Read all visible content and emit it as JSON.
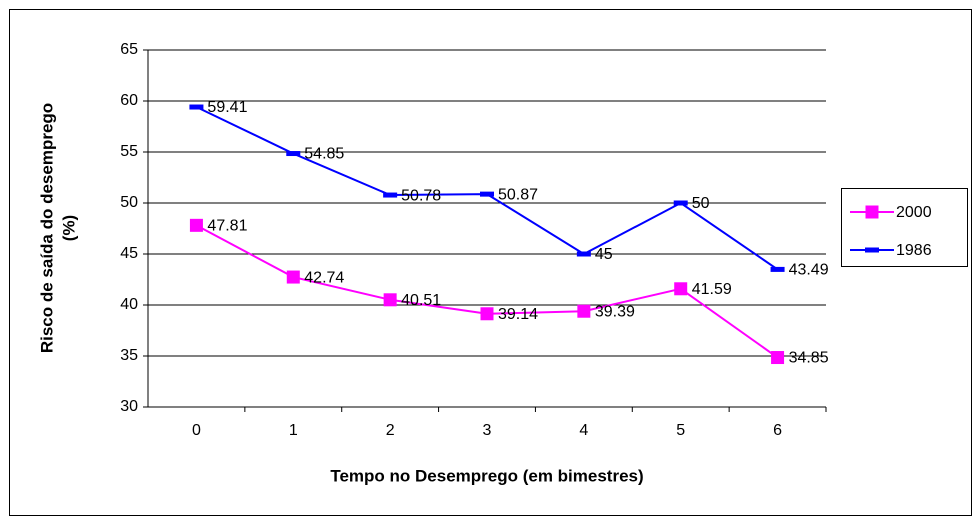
{
  "chart_data": {
    "type": "line",
    "x_label": "Tempo no Desemprego (em bimestres)",
    "y_label": [
      "Risco de saída do desemprego",
      "(%)"
    ],
    "categories": [
      "0",
      "1",
      "2",
      "3",
      "4",
      "5",
      "6"
    ],
    "series": [
      {
        "name": "2000",
        "color": "#ff00ff",
        "marker": "square",
        "values": [
          47.81,
          42.74,
          40.51,
          39.14,
          39.39,
          41.59,
          34.85
        ]
      },
      {
        "name": "1986",
        "color": "#0000ff",
        "marker": "dash",
        "values": [
          59.41,
          54.85,
          50.78,
          50.87,
          45,
          50,
          43.49
        ]
      }
    ],
    "ylim": [
      30,
      65
    ],
    "yticks": [
      30,
      35,
      40,
      45,
      50,
      55,
      60,
      65
    ],
    "grid": true,
    "legend": "right"
  }
}
